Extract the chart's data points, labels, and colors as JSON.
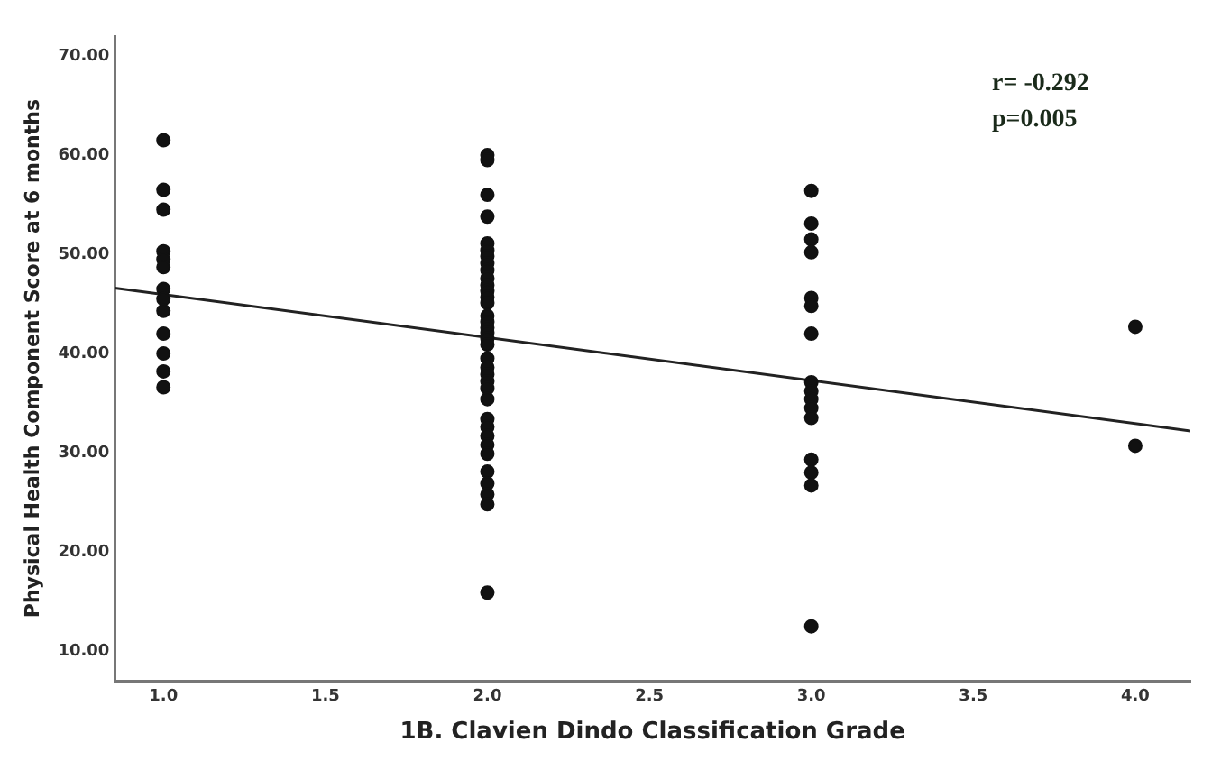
{
  "chart_data": {
    "type": "scatter",
    "xlabel": "1B. Clavien Dindo Classification Grade",
    "ylabel": "Physical Health Component Score at 6 months",
    "annotations": [
      "r= -0.292",
      "p=0.005"
    ],
    "series": [
      {
        "type": "scatter",
        "color": "#111111",
        "marker": "circle",
        "x": [
          1,
          1,
          1,
          1,
          1,
          1,
          1,
          1,
          1,
          1,
          1,
          1,
          1,
          2,
          2,
          2,
          2,
          2,
          2,
          2,
          2,
          2,
          2,
          2,
          2,
          2,
          2,
          2,
          2,
          2,
          2,
          2,
          2,
          2,
          2,
          2,
          2,
          2,
          2,
          2,
          2,
          2,
          2,
          2,
          2,
          2,
          2,
          2,
          2,
          3,
          3,
          3,
          3,
          3,
          3,
          3,
          3,
          3,
          3,
          3,
          3,
          3,
          3,
          3,
          3,
          4,
          4
        ],
        "values": [
          61.5,
          56.5,
          54.5,
          50.3,
          49.5,
          48.7,
          46.5,
          45.5,
          44.3,
          42,
          40,
          38.2,
          36.6,
          60,
          59.5,
          56,
          53.8,
          51.1,
          50.4,
          49.8,
          49.1,
          48.4,
          47.6,
          46.9,
          46.3,
          45.7,
          45.1,
          43.8,
          43.2,
          42.6,
          42.1,
          41.5,
          40.9,
          39.5,
          38.6,
          37.9,
          37.2,
          36.5,
          35.4,
          33.4,
          32.6,
          31.7,
          30.8,
          29.9,
          28.1,
          26.9,
          25.8,
          24.8,
          15.9,
          56.4,
          53.1,
          51.5,
          50.2,
          45.6,
          44.8,
          42,
          37.1,
          36.2,
          35.4,
          34.5,
          33.5,
          29.3,
          28,
          26.7,
          12.5,
          42.7,
          30.7
        ]
      },
      {
        "type": "line",
        "color": "#222222",
        "x": [
          0.85,
          4.17
        ],
        "values": [
          46.6,
          32.2
        ]
      }
    ],
    "xlim": [
      0.85,
      4.17
    ],
    "ylim": [
      7,
      72
    ],
    "xticks": [
      {
        "value": 1,
        "label": "1.0"
      },
      {
        "value": 1.5,
        "label": "1.5"
      },
      {
        "value": 2,
        "label": "2.0"
      },
      {
        "value": 2.5,
        "label": "2.5"
      },
      {
        "value": 3,
        "label": "3.0"
      },
      {
        "value": 3.5,
        "label": "3.5"
      },
      {
        "value": 4,
        "label": "4.0"
      }
    ],
    "yticks": [
      {
        "value": 10,
        "label": "10.00"
      },
      {
        "value": 20,
        "label": "20.00"
      },
      {
        "value": 30,
        "label": "30.00"
      },
      {
        "value": 40,
        "label": "40.00"
      },
      {
        "value": 50,
        "label": "50.00"
      },
      {
        "value": 60,
        "label": "60.00"
      },
      {
        "value": 70,
        "label": "70.00"
      }
    ],
    "grid": false,
    "legend": false
  }
}
